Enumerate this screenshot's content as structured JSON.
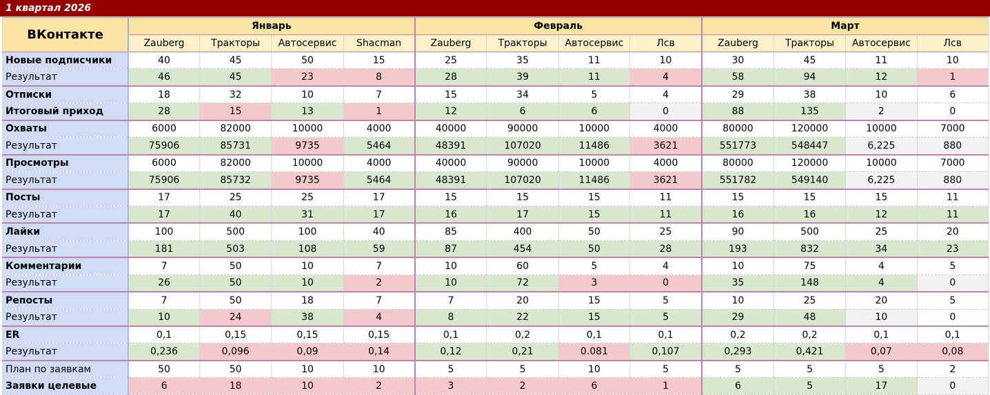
{
  "sheet_title": "1 квартал 2026",
  "brand": "ВКонтакте",
  "months": [
    "Январь",
    "Февраль",
    "Март"
  ],
  "subheaders": [
    "Zauberg",
    "Тракторы",
    "Автосервис",
    "Shacman",
    "Zauberg",
    "Тракторы",
    "Автосервис",
    "Лсв",
    "Zauberg",
    "Тракторы",
    "Автосервис",
    "Лсв"
  ],
  "cell_status_colors": {
    "g": "#d7e8cf",
    "r": "#f4c9c9",
    "w": "#ffffff",
    "e": "#f2f2f2"
  },
  "rows": [
    {
      "label": "Новые подписчики",
      "bold": true,
      "values": [
        "40",
        "45",
        "50",
        "15",
        "25",
        "35",
        "11",
        "10",
        "30",
        "45",
        "11",
        "10"
      ],
      "status": "wwwwwwwwwwww",
      "group_end": false
    },
    {
      "label": "Результат",
      "bold": false,
      "values": [
        "46",
        "45",
        "23",
        "8",
        "28",
        "39",
        "11",
        "4",
        "58",
        "94",
        "12",
        "1"
      ],
      "status": "ggrrgggrgggr",
      "group_end": true
    },
    {
      "label": "Отписки",
      "bold": true,
      "values": [
        "18",
        "32",
        "10",
        "7",
        "15",
        "34",
        "5",
        "4",
        "29",
        "38",
        "10",
        "6"
      ],
      "status": "wwwwwwwwwwww",
      "group_end": false
    },
    {
      "label": "Итоговый приход",
      "bold": true,
      "values": [
        "28",
        "15",
        "13",
        "1",
        "12",
        "6",
        "6",
        "0",
        "88",
        "135",
        "2",
        "0"
      ],
      "status": "grgrgggegged",
      "group_end": true
    },
    {
      "label": "Охваты",
      "bold": true,
      "values": [
        "6000",
        "82000",
        "10000",
        "4000",
        "40000",
        "90000",
        "10000",
        "4000",
        "80000",
        "120000",
        "10000",
        "7000"
      ],
      "status": "wwwwwwwwwwww",
      "group_end": false
    },
    {
      "label": "Результат",
      "bold": false,
      "values": [
        "75906",
        "85731",
        "9735",
        "5464",
        "48391",
        "107020",
        "11486",
        "3621",
        "551773",
        "548447",
        "6,225",
        "880"
      ],
      "status": "ggrggggrggee",
      "group_end": true
    },
    {
      "label": "Просмотры",
      "bold": true,
      "values": [
        "6000",
        "82000",
        "10000",
        "4000",
        "40000",
        "90000",
        "10000",
        "4000",
        "80000",
        "120000",
        "10000",
        "7000"
      ],
      "status": "wwwwwwwwwwww",
      "group_end": false
    },
    {
      "label": "Результат",
      "bold": false,
      "values": [
        "75906",
        "85732",
        "9735",
        "5464",
        "48391",
        "107020",
        "11486",
        "3621",
        "551782",
        "549140",
        "6,225",
        "880"
      ],
      "status": "ggrggggrggee",
      "group_end": true
    },
    {
      "label": "Посты",
      "bold": true,
      "values": [
        "17",
        "25",
        "25",
        "17",
        "15",
        "15",
        "15",
        "11",
        "15",
        "15",
        "15",
        "11"
      ],
      "status": "wwwwwwwwwwww",
      "group_end": false
    },
    {
      "label": "Результат",
      "bold": false,
      "values": [
        "17",
        "40",
        "31",
        "17",
        "16",
        "17",
        "15",
        "11",
        "16",
        "16",
        "12",
        "11"
      ],
      "status": "gggggggggggg",
      "group_end": true
    },
    {
      "label": "Лайки",
      "bold": true,
      "values": [
        "100",
        "500",
        "100",
        "40",
        "85",
        "400",
        "50",
        "25",
        "90",
        "500",
        "25",
        "20"
      ],
      "status": "wwwwwwwwwwww",
      "group_end": false
    },
    {
      "label": "Результат",
      "bold": false,
      "values": [
        "181",
        "503",
        "108",
        "59",
        "87",
        "454",
        "50",
        "28",
        "193",
        "832",
        "34",
        "23"
      ],
      "status": "gggggggggggg",
      "group_end": true
    },
    {
      "label": "Комментарии",
      "bold": true,
      "values": [
        "7",
        "50",
        "10",
        "7",
        "10",
        "60",
        "5",
        "4",
        "10",
        "75",
        "4",
        "5"
      ],
      "status": "wwwwwwwwwwww",
      "group_end": false
    },
    {
      "label": "Результат",
      "bold": false,
      "values": [
        "26",
        "50",
        "10",
        "2",
        "10",
        "72",
        "3",
        "0",
        "35",
        "148",
        "4",
        "0"
      ],
      "status": "gggrggrrggge",
      "group_end": true
    },
    {
      "label": "Репосты",
      "bold": true,
      "values": [
        "7",
        "50",
        "18",
        "7",
        "7",
        "20",
        "15",
        "5",
        "10",
        "25",
        "20",
        "5"
      ],
      "status": "wwwwwwwwwwww",
      "group_end": false
    },
    {
      "label": "Результат",
      "bold": false,
      "values": [
        "10",
        "24",
        "38",
        "4",
        "8",
        "22",
        "15",
        "5",
        "29",
        "48",
        "10",
        "0"
      ],
      "status": "grgrgggggged",
      "group_end": true
    },
    {
      "label": "ER",
      "bold": true,
      "values": [
        "0,1",
        "0,15",
        "0,15",
        "0,15",
        "0,1",
        "0,2",
        "0,1",
        "0,1",
        "0,2",
        "0,2",
        "0,1",
        "0,1"
      ],
      "status": "wwwwwwwwwwww",
      "group_end": false
    },
    {
      "label": "Результат",
      "bold": false,
      "values": [
        "0,236",
        "0,096",
        "0,09",
        "0,14",
        "0,12",
        "0,21",
        "0.081",
        "0,107",
        "0,293",
        "0,421",
        "0,07",
        "0,08"
      ],
      "status": "grrrggrgggrr",
      "group_end": true
    },
    {
      "label": "План по заявкам",
      "bold": false,
      "values": [
        "50",
        "50",
        "10",
        "10",
        "5",
        "5",
        "10",
        "5",
        "5",
        "5",
        "5",
        "2"
      ],
      "status": "wwwwwwwwwwww",
      "group_end": false
    },
    {
      "label": "Заявки целевые",
      "bold": true,
      "values": [
        "6",
        "18",
        "10",
        "2",
        "3",
        "2",
        "6",
        "1",
        "6",
        "5",
        "17",
        "0"
      ],
      "status": "rrrrrrrrggge",
      "group_end": false
    }
  ]
}
